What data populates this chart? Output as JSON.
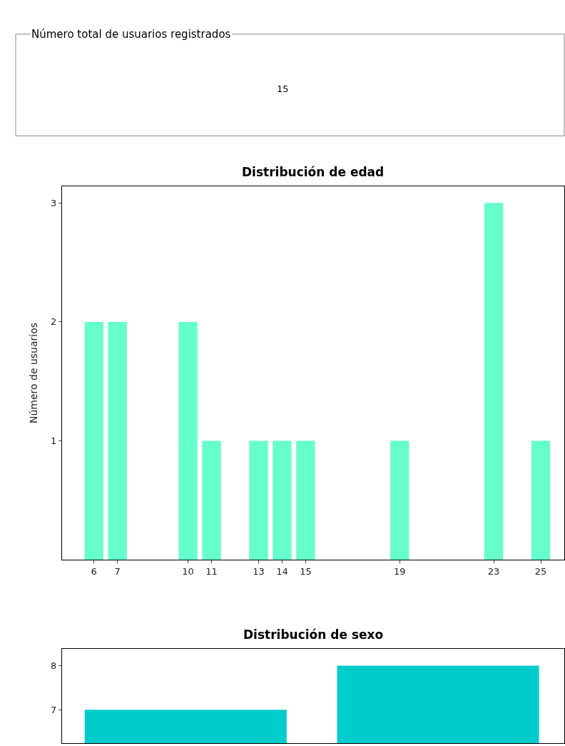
{
  "chart_data": [
    {
      "type": "other",
      "title": "Número total de usuarios registrados",
      "annotations": [
        "15"
      ]
    },
    {
      "type": "bar",
      "title": "Distribución de edad",
      "ylabel": "Número de usuarios",
      "x": [
        6,
        7,
        10,
        11,
        13,
        14,
        15,
        19,
        23,
        25
      ],
      "values": [
        2,
        2,
        2,
        1,
        1,
        1,
        1,
        1,
        3,
        1
      ],
      "color": "#66ffcc",
      "xlim": [
        4.64,
        26
      ],
      "xticks": [
        6,
        7,
        10,
        11,
        13,
        14,
        15,
        19,
        23,
        25
      ],
      "ylim": [
        0,
        3.14
      ],
      "yticks": [
        1,
        2,
        3
      ]
    },
    {
      "type": "bar",
      "title": "Distribución de sexo",
      "categories": [
        null,
        null
      ],
      "values": [
        7,
        8
      ],
      "color": "#00cccc",
      "ylim": [
        6.24,
        8.39
      ],
      "yticks": [
        7,
        8
      ],
      "tick_labels": "y"
    }
  ]
}
